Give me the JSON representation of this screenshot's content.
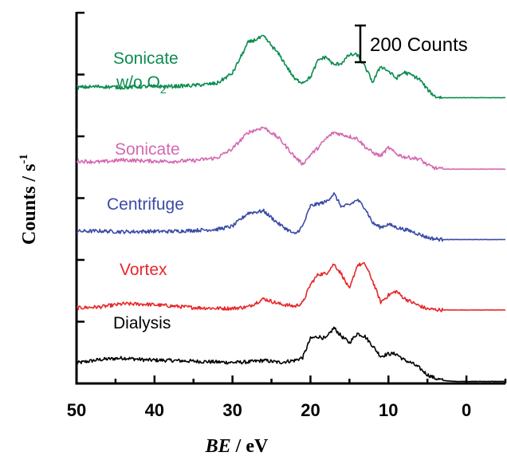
{
  "chart_data": {
    "type": "line",
    "xlabel_main": "BE",
    "xlabel_unit": " / eV",
    "ylabel_main": "Counts / s",
    "ylabel_exp": "-1",
    "xlim": [
      50,
      -5
    ],
    "x_ticks": [
      50,
      40,
      30,
      20,
      10,
      0
    ],
    "y_minor_tick_count": 6,
    "scale_bar": {
      "label": "200 Counts",
      "counts": 200
    },
    "series": [
      {
        "name": "Dialysis",
        "color": "#000000",
        "offset": 0,
        "noise": 9,
        "x": [
          50,
          47,
          44,
          41,
          38,
          35,
          32,
          30,
          28,
          26,
          24,
          22,
          21,
          20,
          19,
          18,
          17,
          16,
          15,
          14,
          13,
          12,
          11,
          10,
          9,
          8,
          7,
          6,
          5,
          4,
          3,
          2,
          1,
          0,
          -2,
          -5
        ],
        "y": [
          95,
          112,
          120,
          110,
          108,
          104,
          100,
          98,
          100,
          108,
          98,
          108,
          122,
          215,
          225,
          215,
          268,
          225,
          195,
          240,
          225,
          178,
          128,
          140,
          140,
          110,
          95,
          70,
          38,
          20,
          10,
          6,
          5,
          5,
          5,
          5
        ]
      },
      {
        "name": "Vortex",
        "color": "#e8262a",
        "offset": 355,
        "noise": 9,
        "x": [
          50,
          47,
          44,
          41,
          38,
          35,
          32,
          30,
          28,
          26,
          24,
          22,
          21,
          20,
          19,
          18,
          17,
          16,
          15,
          14,
          13,
          12,
          11,
          10,
          9,
          8,
          7,
          6,
          5,
          4,
          3,
          2,
          1,
          0,
          -2,
          -5
        ],
        "y": [
          10,
          15,
          30,
          28,
          20,
          12,
          8,
          8,
          15,
          55,
          30,
          18,
          35,
          125,
          175,
          178,
          225,
          175,
          100,
          220,
          225,
          140,
          38,
          72,
          92,
          58,
          38,
          20,
          5,
          2,
          0,
          0,
          0,
          0,
          0,
          0
        ]
      },
      {
        "name": "Centrifuge",
        "color": "#3a4ba6",
        "offset": 700,
        "noise": 9,
        "x": [
          50,
          47,
          44,
          41,
          38,
          35,
          32,
          30,
          28,
          26,
          24,
          22,
          21,
          20,
          19,
          18,
          17,
          16,
          15,
          14,
          13,
          12,
          11,
          10,
          9,
          8,
          7,
          6,
          5,
          4,
          3,
          2,
          1,
          0,
          -2,
          -5
        ],
        "y": [
          40,
          42,
          38,
          40,
          40,
          45,
          50,
          65,
          130,
          140,
          75,
          25,
          65,
          165,
          175,
          185,
          225,
          160,
          170,
          195,
          155,
          80,
          60,
          75,
          60,
          50,
          40,
          25,
          10,
          3,
          0,
          0,
          0,
          0,
          0,
          0
        ]
      },
      {
        "name": "Sonicate",
        "color": "#d569b1",
        "offset": 1045,
        "noise": 9,
        "x": [
          50,
          47,
          44,
          41,
          38,
          35,
          32,
          30,
          28,
          26,
          24,
          22,
          21,
          20,
          19,
          18,
          17,
          16,
          15,
          14,
          13,
          12,
          11,
          10,
          9,
          8,
          7,
          6,
          5,
          4,
          3,
          2,
          1,
          0,
          -2,
          -5
        ],
        "y": [
          40,
          35,
          45,
          40,
          38,
          42,
          55,
          100,
          180,
          205,
          150,
          60,
          25,
          70,
          105,
          150,
          180,
          170,
          160,
          150,
          110,
          80,
          65,
          105,
          75,
          60,
          55,
          50,
          20,
          5,
          0,
          0,
          0,
          0,
          0,
          0
        ]
      },
      {
        "name": "Sonicate w/o O2",
        "color": "#0b8c4e",
        "offset": 1395,
        "noise": 9,
        "x": [
          50,
          47,
          44,
          41,
          38,
          35,
          32,
          30,
          28,
          26,
          24,
          22,
          21,
          20,
          19,
          18,
          17,
          16,
          15,
          14,
          13,
          12,
          11,
          10,
          9,
          8,
          7,
          6,
          5,
          4,
          3,
          2,
          1,
          0,
          -2,
          -5
        ],
        "y": [
          50,
          55,
          50,
          55,
          55,
          60,
          70,
          120,
          270,
          300,
          210,
          90,
          75,
          100,
          185,
          200,
          160,
          170,
          210,
          210,
          150,
          75,
          155,
          130,
          95,
          125,
          110,
          90,
          40,
          5,
          0,
          0,
          0,
          0,
          0,
          0
        ]
      }
    ]
  },
  "labels": {
    "dialysis": "Dialysis",
    "vortex": "Vortex",
    "centrifuge": "Centrifuge",
    "sonicate": "Sonicate",
    "sonicate_wo_line1": "Sonicate",
    "sonicate_wo_line2_main": "w/o O",
    "sonicate_wo_line2_sub": "2"
  }
}
